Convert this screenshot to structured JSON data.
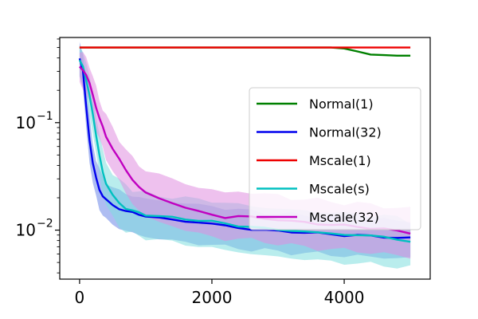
{
  "chart_data": {
    "type": "line",
    "title": "",
    "xlabel": "",
    "ylabel": "",
    "xlim": [
      -300,
      5300
    ],
    "ylim": [
      0.0035,
      0.62
    ],
    "yscale": "log",
    "x_ticks": [
      0,
      2000,
      4000
    ],
    "x_tick_labels": [
      "0",
      "2000",
      "4000"
    ],
    "y_ticks": [
      0.01,
      0.1
    ],
    "y_tick_labels": [
      {
        "base": "10",
        "exp": "−2"
      },
      {
        "base": "10",
        "exp": "−1"
      }
    ],
    "grid": false,
    "legend_position": "right",
    "x": [
      0,
      50,
      100,
      150,
      200,
      250,
      300,
      350,
      400,
      500,
      600,
      700,
      800,
      900,
      1000,
      1200,
      1400,
      1600,
      1800,
      2000,
      2200,
      2400,
      2600,
      2800,
      3000,
      3200,
      3400,
      3600,
      3800,
      4000,
      4200,
      4400,
      4600,
      4800,
      5000
    ],
    "series": [
      {
        "name": "Normal(1)",
        "color": "#008000",
        "values": [
          0.5,
          0.5,
          0.5,
          0.5,
          0.5,
          0.5,
          0.5,
          0.5,
          0.5,
          0.5,
          0.5,
          0.5,
          0.5,
          0.5,
          0.5,
          0.5,
          0.5,
          0.5,
          0.5,
          0.5,
          0.5,
          0.5,
          0.5,
          0.5,
          0.5,
          0.5,
          0.5,
          0.5,
          0.5,
          0.49,
          0.46,
          0.43,
          0.425,
          0.42,
          0.42
        ]
      },
      {
        "name": "Normal(32)",
        "color": "#0000ee",
        "band_color": "#6b86e8",
        "values": [
          0.4,
          0.3,
          0.14,
          0.07,
          0.042,
          0.03,
          0.024,
          0.021,
          0.019,
          0.017,
          0.016,
          0.015,
          0.0145,
          0.014,
          0.0135,
          0.013,
          0.0125,
          0.012,
          0.0118,
          0.0115,
          0.011,
          0.0105,
          0.0102,
          0.01,
          0.0098,
          0.0097,
          0.0095,
          0.0093,
          0.0092,
          0.009,
          0.0089,
          0.0088,
          0.0087,
          0.0085,
          0.0084
        ],
        "lower": [
          0.28,
          0.2,
          0.09,
          0.045,
          0.027,
          0.02,
          0.016,
          0.014,
          0.0125,
          0.0112,
          0.0105,
          0.0098,
          0.0094,
          0.009,
          0.0087,
          0.0083,
          0.008,
          0.0077,
          0.0075,
          0.0073,
          0.007,
          0.0068,
          0.0066,
          0.0065,
          0.0063,
          0.0062,
          0.0061,
          0.006,
          0.0059,
          0.0058,
          0.0057,
          0.0056,
          0.0056,
          0.0055,
          0.0055
        ],
        "upper": [
          0.55,
          0.45,
          0.22,
          0.11,
          0.065,
          0.046,
          0.036,
          0.031,
          0.028,
          0.025,
          0.023,
          0.022,
          0.021,
          0.02,
          0.0195,
          0.019,
          0.0183,
          0.0177,
          0.0172,
          0.0168,
          0.016,
          0.0155,
          0.015,
          0.0147,
          0.0143,
          0.014,
          0.0138,
          0.0135,
          0.0133,
          0.013,
          0.0128,
          0.0127,
          0.0125,
          0.0123,
          0.0122
        ]
      },
      {
        "name": "Mscale(1)",
        "color": "#ee0000",
        "values": [
          0.5,
          0.5,
          0.5,
          0.5,
          0.5,
          0.5,
          0.5,
          0.5,
          0.5,
          0.5,
          0.5,
          0.5,
          0.5,
          0.5,
          0.5,
          0.5,
          0.5,
          0.5,
          0.5,
          0.5,
          0.5,
          0.5,
          0.5,
          0.5,
          0.5,
          0.5,
          0.5,
          0.5,
          0.5,
          0.5,
          0.5,
          0.5,
          0.5,
          0.5,
          0.5
        ]
      },
      {
        "name": "Mscale(s)",
        "color": "#00c0c0",
        "band_color": "#80dedf",
        "values": [
          0.38,
          0.33,
          0.25,
          0.18,
          0.12,
          0.075,
          0.05,
          0.035,
          0.027,
          0.021,
          0.018,
          0.016,
          0.015,
          0.0145,
          0.014,
          0.0135,
          0.013,
          0.0127,
          0.0124,
          0.012,
          0.0115,
          0.011,
          0.0107,
          0.0104,
          0.0101,
          0.0099,
          0.0097,
          0.0095,
          0.0093,
          0.0091,
          0.009,
          0.0088,
          0.0087,
          0.0083,
          0.0077
        ],
        "lower": [
          0.27,
          0.23,
          0.17,
          0.12,
          0.08,
          0.05,
          0.033,
          0.023,
          0.017,
          0.013,
          0.011,
          0.0098,
          0.0092,
          0.0088,
          0.0085,
          0.0081,
          0.0077,
          0.0074,
          0.0071,
          0.0068,
          0.0065,
          0.0063,
          0.006,
          0.0058,
          0.0056,
          0.0055,
          0.0054,
          0.0052,
          0.0051,
          0.005,
          0.0049,
          0.0048,
          0.0047,
          0.0046,
          0.0045
        ],
        "upper": [
          0.52,
          0.46,
          0.36,
          0.27,
          0.18,
          0.115,
          0.078,
          0.055,
          0.043,
          0.034,
          0.029,
          0.026,
          0.024,
          0.023,
          0.022,
          0.021,
          0.0205,
          0.0198,
          0.0193,
          0.0188,
          0.018,
          0.0173,
          0.0168,
          0.0163,
          0.0158,
          0.0155,
          0.0152,
          0.0149,
          0.0146,
          0.0143,
          0.0141,
          0.0138,
          0.0136,
          0.013,
          0.012
        ]
      },
      {
        "name": "Mscale(32)",
        "color": "#c000c0",
        "band_color": "#e08ee0",
        "values": [
          0.33,
          0.31,
          0.28,
          0.23,
          0.18,
          0.14,
          0.11,
          0.09,
          0.075,
          0.058,
          0.045,
          0.036,
          0.03,
          0.025,
          0.022,
          0.02,
          0.018,
          0.016,
          0.015,
          0.014,
          0.013,
          0.0135,
          0.0133,
          0.0128,
          0.0125,
          0.0121,
          0.0118,
          0.0115,
          0.0112,
          0.011,
          0.0108,
          0.0105,
          0.0102,
          0.0098,
          0.0095
        ],
        "lower": [
          0.23,
          0.21,
          0.19,
          0.15,
          0.115,
          0.088,
          0.07,
          0.057,
          0.047,
          0.036,
          0.028,
          0.022,
          0.018,
          0.015,
          0.0133,
          0.012,
          0.011,
          0.0099,
          0.0093,
          0.0087,
          0.0082,
          0.0083,
          0.0081,
          0.0078,
          0.0075,
          0.0072,
          0.007,
          0.0068,
          0.0066,
          0.0065,
          0.0064,
          0.0062,
          0.006,
          0.0058,
          0.0056
        ],
        "upper": [
          0.46,
          0.44,
          0.4,
          0.34,
          0.27,
          0.21,
          0.165,
          0.135,
          0.115,
          0.09,
          0.07,
          0.056,
          0.047,
          0.04,
          0.036,
          0.033,
          0.03,
          0.027,
          0.025,
          0.024,
          0.022,
          0.023,
          0.0225,
          0.0215,
          0.021,
          0.02,
          0.0195,
          0.019,
          0.0185,
          0.018,
          0.0177,
          0.0172,
          0.0168,
          0.0162,
          0.0158
        ]
      }
    ]
  }
}
